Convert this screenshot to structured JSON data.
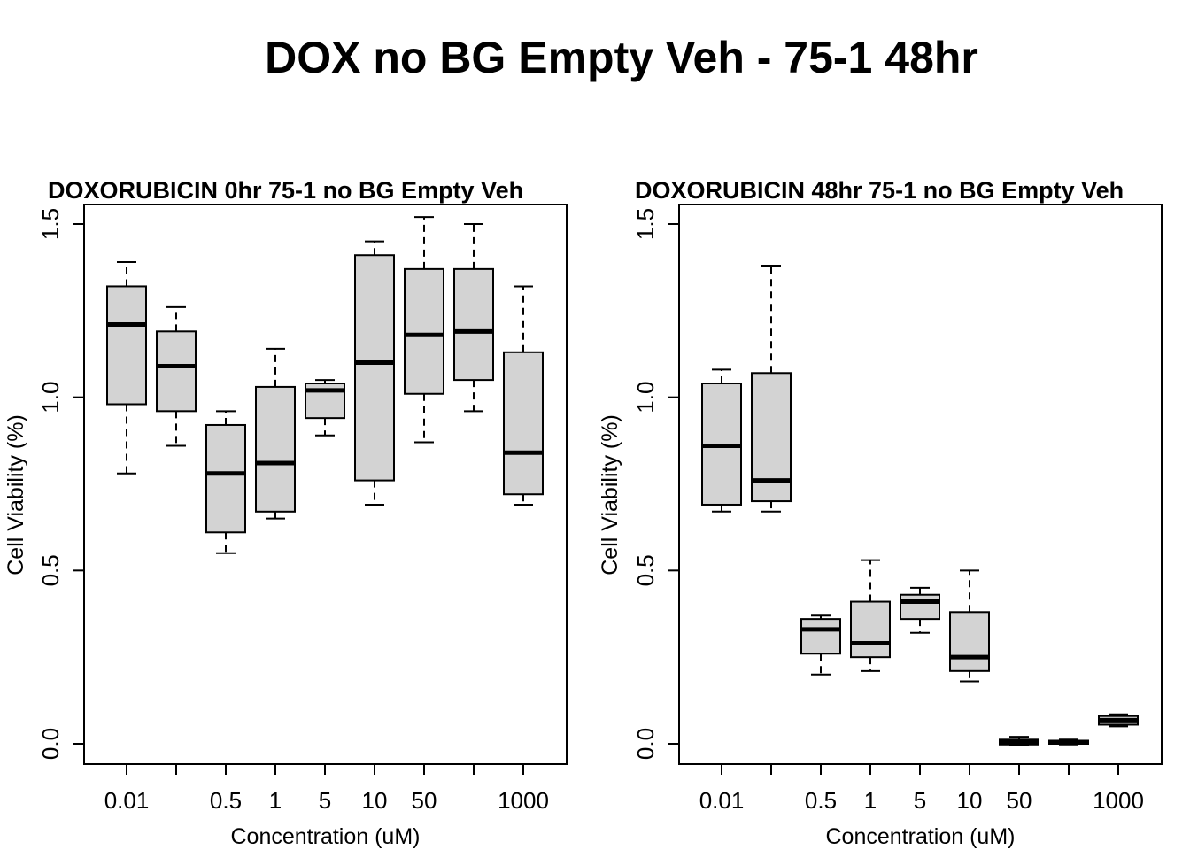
{
  "title": "DOX no BG Empty Veh - 75-1 48hr",
  "chart_data": [
    {
      "type": "boxplot",
      "title": "DOXORUBICIN 0hr 75-1 no BG Empty Veh",
      "xlabel": "Concentration (uM)",
      "ylabel": "Cell Viability (%)",
      "ylim": [
        0,
        1.5
      ],
      "yticks": [
        "0.0",
        "0.5",
        "1.0",
        "1.5"
      ],
      "categories": [
        "0.01",
        "",
        "0.5",
        "1",
        "5",
        "10",
        "50",
        "",
        "1000"
      ],
      "boxes": [
        {
          "min": 0.78,
          "q1": 0.98,
          "median": 1.21,
          "q3": 1.32,
          "max": 1.39
        },
        {
          "min": 0.86,
          "q1": 0.96,
          "median": 1.09,
          "q3": 1.19,
          "max": 1.26
        },
        {
          "min": 0.55,
          "q1": 0.61,
          "median": 0.78,
          "q3": 0.92,
          "max": 0.96
        },
        {
          "min": 0.65,
          "q1": 0.67,
          "median": 0.81,
          "q3": 1.03,
          "max": 1.14
        },
        {
          "min": 0.89,
          "q1": 0.94,
          "median": 1.02,
          "q3": 1.04,
          "max": 1.05
        },
        {
          "min": 0.69,
          "q1": 0.76,
          "median": 1.1,
          "q3": 1.41,
          "max": 1.45
        },
        {
          "min": 0.87,
          "q1": 1.01,
          "median": 1.18,
          "q3": 1.37,
          "max": 1.52
        },
        {
          "min": 0.96,
          "q1": 1.05,
          "median": 1.19,
          "q3": 1.37,
          "max": 1.5
        },
        {
          "min": 0.69,
          "q1": 0.72,
          "median": 0.84,
          "q3": 1.13,
          "max": 1.32
        }
      ]
    },
    {
      "type": "boxplot",
      "title": "DOXORUBICIN 48hr 75-1 no BG Empty Veh",
      "xlabel": "Concentration (uM)",
      "ylabel": "Cell Viability (%)",
      "ylim": [
        0,
        1.5
      ],
      "yticks": [
        "0.0",
        "0.5",
        "1.0",
        "1.5"
      ],
      "categories": [
        "0.01",
        "",
        "0.5",
        "1",
        "5",
        "10",
        "50",
        "",
        "1000"
      ],
      "boxes": [
        {
          "min": 0.67,
          "q1": 0.69,
          "median": 0.86,
          "q3": 1.04,
          "max": 1.08
        },
        {
          "min": 0.67,
          "q1": 0.7,
          "median": 0.76,
          "q3": 1.07,
          "max": 1.38
        },
        {
          "min": 0.2,
          "q1": 0.26,
          "median": 0.33,
          "q3": 0.36,
          "max": 0.37
        },
        {
          "min": 0.21,
          "q1": 0.25,
          "median": 0.29,
          "q3": 0.41,
          "max": 0.53
        },
        {
          "min": 0.32,
          "q1": 0.36,
          "median": 0.41,
          "q3": 0.43,
          "max": 0.45
        },
        {
          "min": 0.18,
          "q1": 0.21,
          "median": 0.25,
          "q3": 0.38,
          "max": 0.5
        },
        {
          "min": -0.005,
          "q1": -0.002,
          "median": 0.005,
          "q3": 0.012,
          "max": 0.02
        },
        {
          "min": -0.002,
          "q1": 0.0,
          "median": 0.004,
          "q3": 0.009,
          "max": 0.012
        },
        {
          "min": 0.05,
          "q1": 0.055,
          "median": 0.068,
          "q3": 0.08,
          "max": 0.085
        }
      ]
    }
  ]
}
